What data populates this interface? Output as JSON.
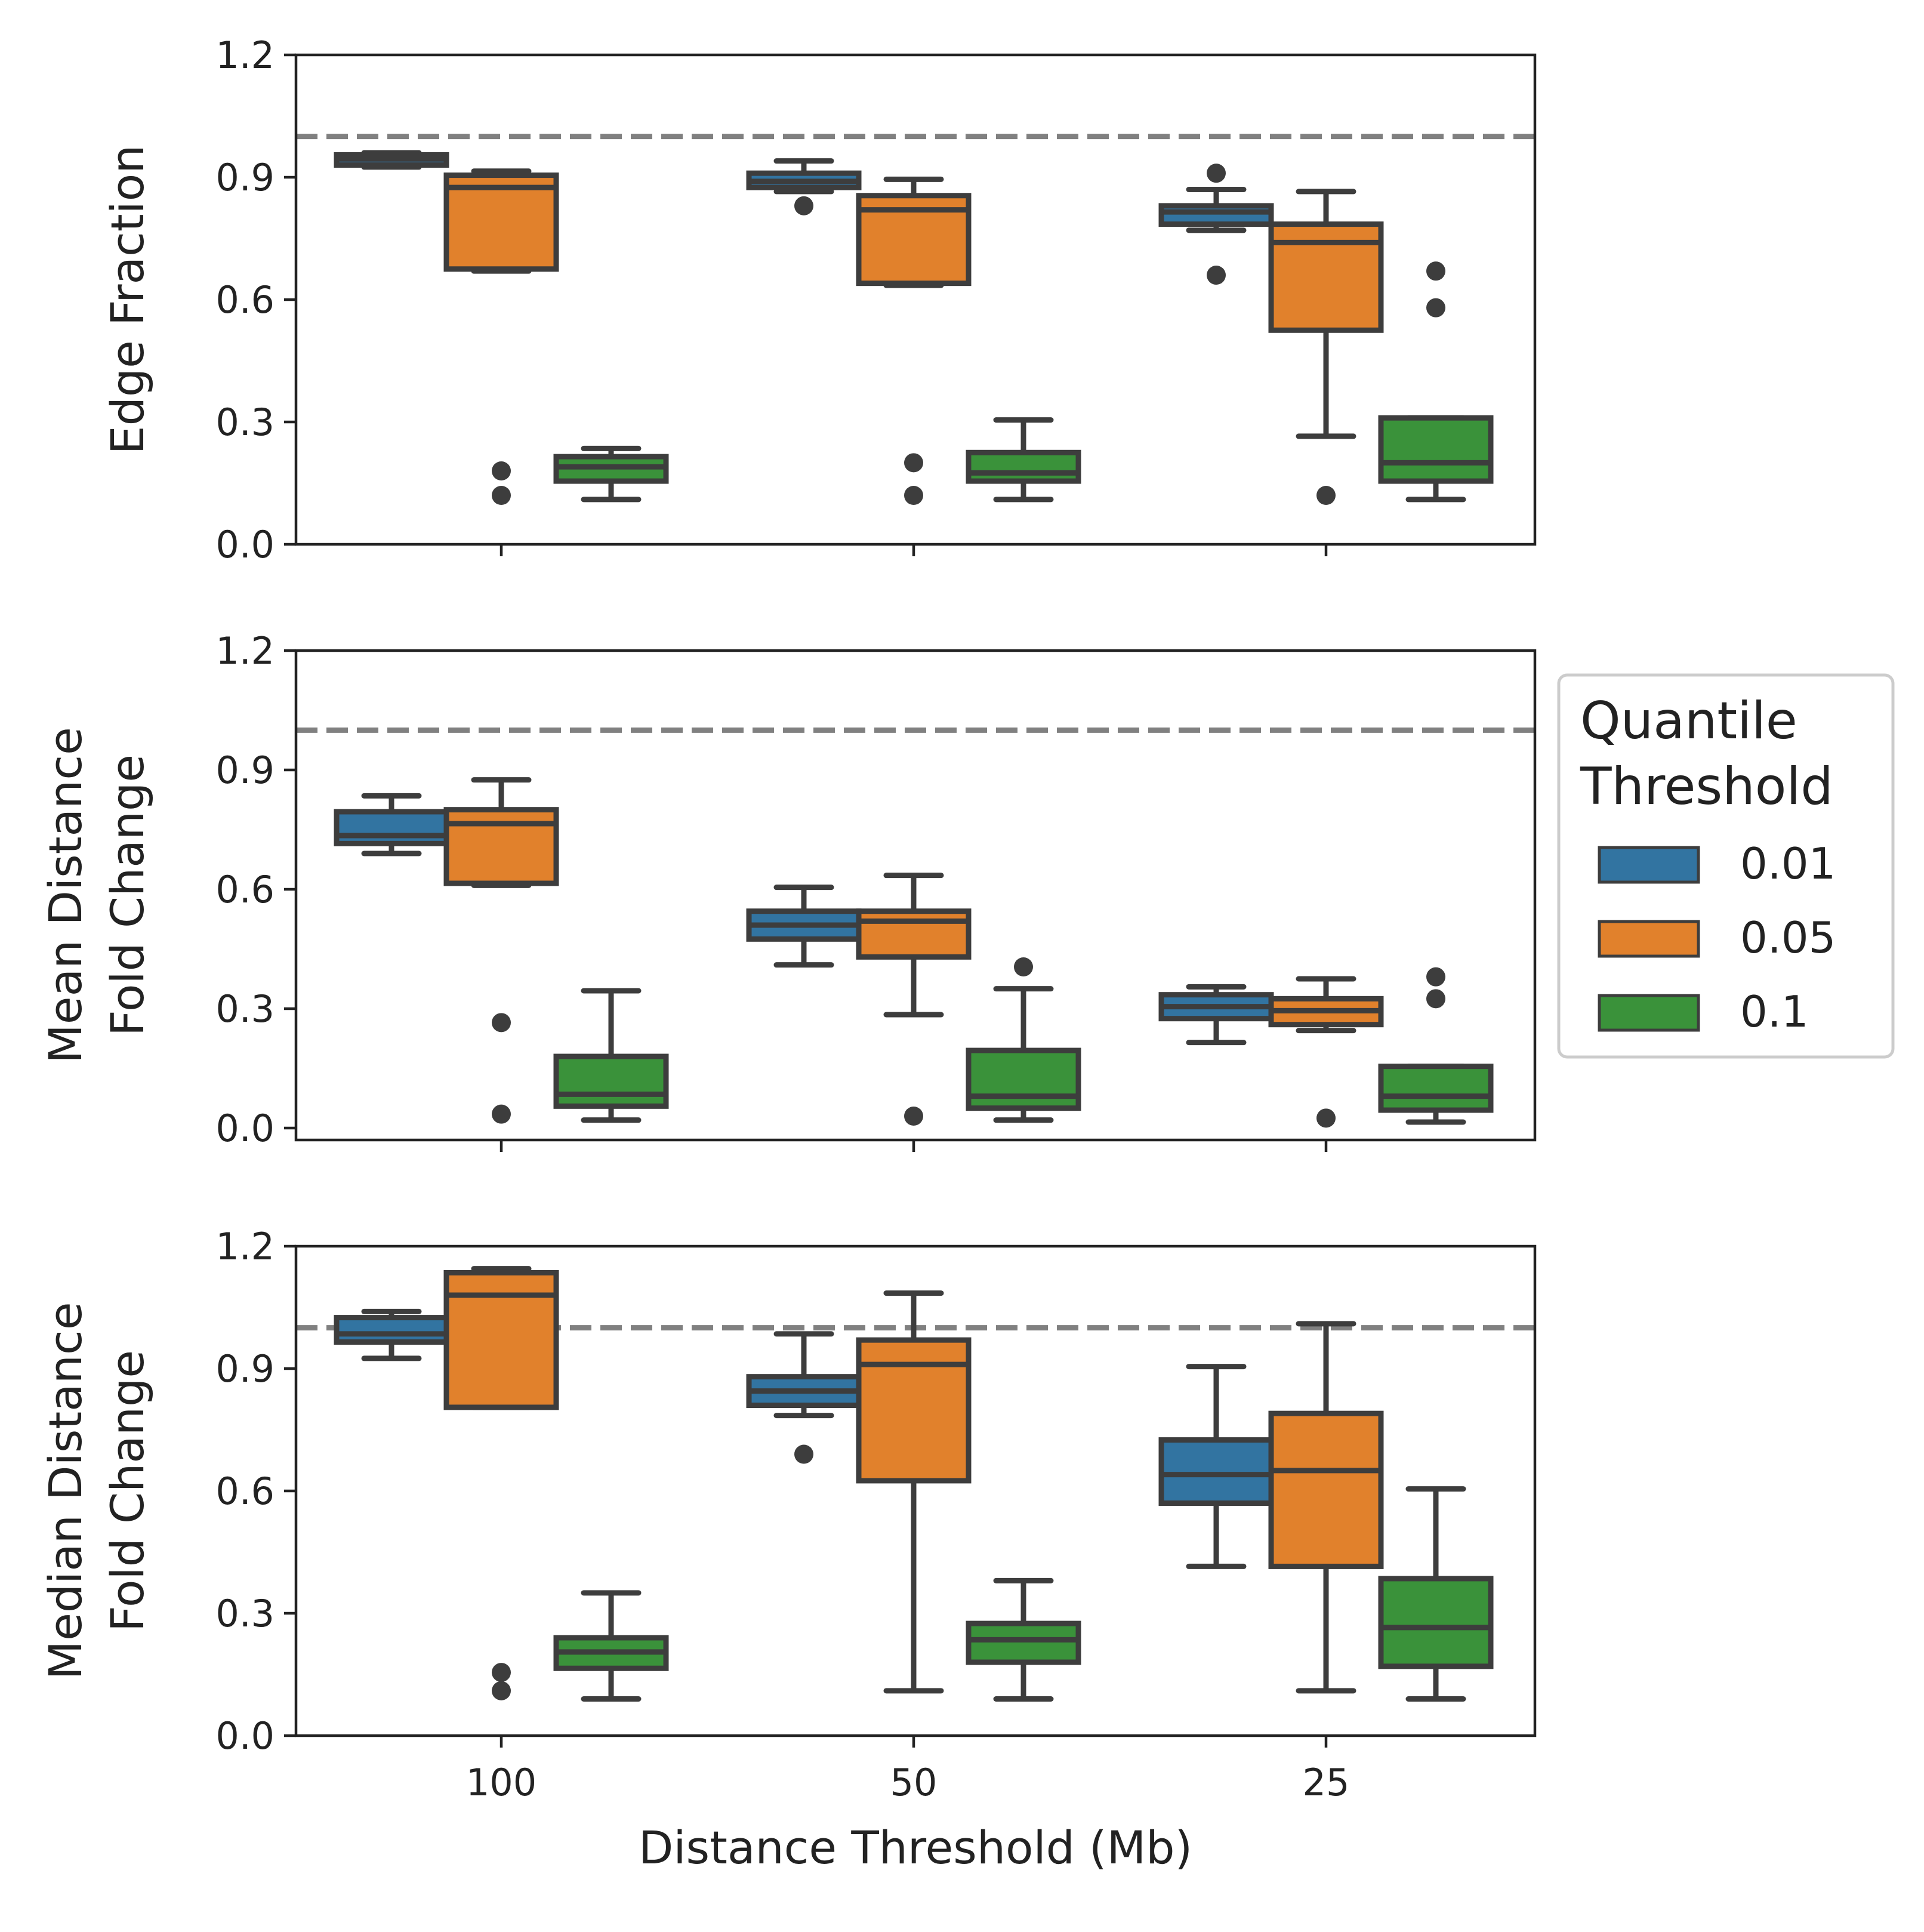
{
  "chart_data": {
    "type": "box",
    "categories": [
      "100",
      "50",
      "25"
    ],
    "xlabel": "Distance Threshold (Mb)",
    "legend": {
      "title": [
        "Quantile",
        "Threshold"
      ],
      "placement": "right, center",
      "entries": [
        {
          "name": "0.01",
          "color": "#3274a1"
        },
        {
          "name": "0.05",
          "color": "#e1812c"
        },
        {
          "name": "0.1",
          "color": "#3a923a"
        }
      ]
    },
    "reference_line": {
      "y": 1.0,
      "style": "dashed",
      "color": "#808080"
    },
    "box_edge_color": "#3d3d3d",
    "grid": false,
    "panels": [
      {
        "ylabel": [
          "Edge Fraction"
        ],
        "ylim": [
          0,
          1.2
        ],
        "yticks": [
          "0.0",
          "0.3",
          "0.6",
          "0.9",
          "1.2"
        ],
        "groups": [
          {
            "category": "100",
            "boxes": [
              {
                "series": "0.01",
                "whislo": 0.925,
                "q1": 0.93,
                "med": 0.945,
                "q3": 0.955,
                "whishi": 0.96,
                "fliers": []
              },
              {
                "series": "0.05",
                "whislo": 0.67,
                "q1": 0.675,
                "med": 0.875,
                "q3": 0.905,
                "whishi": 0.915,
                "fliers": [
                  0.12,
                  0.18
                ]
              },
              {
                "series": "0.1",
                "whislo": 0.11,
                "q1": 0.155,
                "med": 0.19,
                "q3": 0.215,
                "whishi": 0.235,
                "fliers": []
              }
            ]
          },
          {
            "category": "50",
            "boxes": [
              {
                "series": "0.01",
                "whislo": 0.865,
                "q1": 0.875,
                "med": 0.89,
                "q3": 0.91,
                "whishi": 0.94,
                "fliers": [
                  0.83
                ]
              },
              {
                "series": "0.05",
                "whislo": 0.635,
                "q1": 0.64,
                "med": 0.82,
                "q3": 0.855,
                "whishi": 0.895,
                "fliers": [
                  0.12,
                  0.2
                ]
              },
              {
                "series": "0.1",
                "whislo": 0.11,
                "q1": 0.155,
                "med": 0.175,
                "q3": 0.225,
                "whishi": 0.305,
                "fliers": []
              }
            ]
          },
          {
            "category": "25",
            "boxes": [
              {
                "series": "0.01",
                "whislo": 0.77,
                "q1": 0.785,
                "med": 0.815,
                "q3": 0.83,
                "whishi": 0.87,
                "fliers": [
                  0.66,
                  0.91
                ]
              },
              {
                "series": "0.05",
                "whislo": 0.265,
                "q1": 0.525,
                "med": 0.74,
                "q3": 0.785,
                "whishi": 0.865,
                "fliers": [
                  0.12
                ]
              },
              {
                "series": "0.1",
                "whislo": 0.11,
                "q1": 0.155,
                "med": 0.2,
                "q3": 0.31,
                "whishi": 0.31,
                "fliers": [
                  0.58,
                  0.67
                ]
              }
            ]
          }
        ]
      },
      {
        "ylabel": [
          "Mean Distance",
          "Fold Change"
        ],
        "ylim": [
          -0.03,
          1.2
        ],
        "yticks": [
          "0.0",
          "0.3",
          "0.6",
          "0.9",
          "1.2"
        ],
        "groups": [
          {
            "category": "100",
            "boxes": [
              {
                "series": "0.01",
                "whislo": 0.69,
                "q1": 0.715,
                "med": 0.735,
                "q3": 0.795,
                "whishi": 0.835,
                "fliers": []
              },
              {
                "series": "0.05",
                "whislo": 0.61,
                "q1": 0.615,
                "med": 0.765,
                "q3": 0.8,
                "whishi": 0.875,
                "fliers": [
                  0.035,
                  0.265
                ]
              },
              {
                "series": "0.1",
                "whislo": 0.02,
                "q1": 0.055,
                "med": 0.085,
                "q3": 0.18,
                "whishi": 0.345,
                "fliers": []
              }
            ]
          },
          {
            "category": "50",
            "boxes": [
              {
                "series": "0.01",
                "whislo": 0.41,
                "q1": 0.475,
                "med": 0.51,
                "q3": 0.545,
                "whishi": 0.605,
                "fliers": []
              },
              {
                "series": "0.05",
                "whislo": 0.285,
                "q1": 0.43,
                "med": 0.52,
                "q3": 0.545,
                "whishi": 0.635,
                "fliers": [
                  0.03
                ]
              },
              {
                "series": "0.1",
                "whislo": 0.02,
                "q1": 0.05,
                "med": 0.08,
                "q3": 0.195,
                "whishi": 0.35,
                "fliers": [
                  0.405
                ]
              }
            ]
          },
          {
            "category": "25",
            "boxes": [
              {
                "series": "0.01",
                "whislo": 0.215,
                "q1": 0.275,
                "med": 0.305,
                "q3": 0.335,
                "whishi": 0.355,
                "fliers": []
              },
              {
                "series": "0.05",
                "whislo": 0.245,
                "q1": 0.26,
                "med": 0.295,
                "q3": 0.325,
                "whishi": 0.375,
                "fliers": [
                  0.025
                ]
              },
              {
                "series": "0.1",
                "whislo": 0.015,
                "q1": 0.045,
                "med": 0.08,
                "q3": 0.155,
                "whishi": 0.155,
                "fliers": [
                  0.325,
                  0.38
                ]
              }
            ]
          }
        ]
      },
      {
        "ylabel": [
          "Median Distance",
          "Fold Change"
        ],
        "ylim": [
          0,
          1.2
        ],
        "yticks": [
          "0.0",
          "0.3",
          "0.6",
          "0.9",
          "1.2"
        ],
        "groups": [
          {
            "category": "100",
            "boxes": [
              {
                "series": "0.01",
                "whislo": 0.925,
                "q1": 0.965,
                "med": 0.985,
                "q3": 1.025,
                "whishi": 1.04,
                "fliers": []
              },
              {
                "series": "0.05",
                "whislo": 0.805,
                "q1": 0.805,
                "med": 1.08,
                "q3": 1.135,
                "whishi": 1.145,
                "fliers": [
                  0.11,
                  0.155
                ]
              },
              {
                "series": "0.1",
                "whislo": 0.09,
                "q1": 0.165,
                "med": 0.205,
                "q3": 0.24,
                "whishi": 0.35,
                "fliers": []
              }
            ]
          },
          {
            "category": "50",
            "boxes": [
              {
                "series": "0.01",
                "whislo": 0.785,
                "q1": 0.81,
                "med": 0.845,
                "q3": 0.88,
                "whishi": 0.985,
                "fliers": [
                  0.69
                ]
              },
              {
                "series": "0.05",
                "whislo": 0.11,
                "q1": 0.625,
                "med": 0.91,
                "q3": 0.97,
                "whishi": 1.085,
                "fliers": []
              },
              {
                "series": "0.1",
                "whislo": 0.09,
                "q1": 0.18,
                "med": 0.235,
                "q3": 0.275,
                "whishi": 0.38,
                "fliers": []
              }
            ]
          },
          {
            "category": "25",
            "boxes": [
              {
                "series": "0.01",
                "whislo": 0.415,
                "q1": 0.57,
                "med": 0.64,
                "q3": 0.725,
                "whishi": 0.905,
                "fliers": []
              },
              {
                "series": "0.05",
                "whislo": 0.11,
                "q1": 0.415,
                "med": 0.65,
                "q3": 0.79,
                "whishi": 1.01,
                "fliers": []
              },
              {
                "series": "0.1",
                "whislo": 0.09,
                "q1": 0.17,
                "med": 0.265,
                "q3": 0.385,
                "whishi": 0.605,
                "fliers": []
              }
            ]
          }
        ]
      }
    ]
  }
}
